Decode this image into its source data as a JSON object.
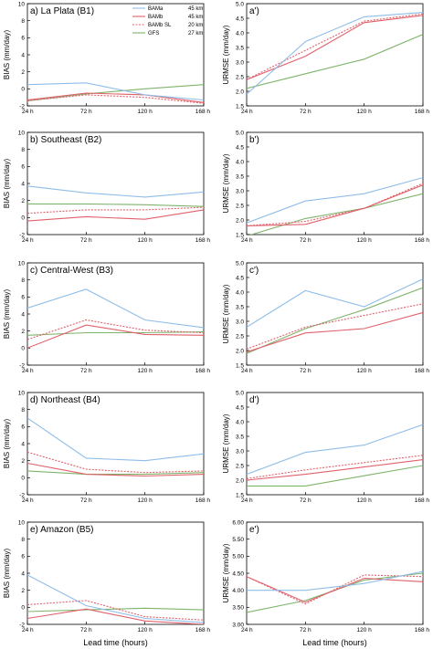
{
  "x_ticks": [
    "24 h",
    "72 h",
    "120 h",
    "168 h"
  ],
  "x_label": "Lead time (hours)",
  "series_style": {
    "BAMa": {
      "color": "#8fbde8",
      "dash": ""
    },
    "BAMb": {
      "color": "#e0606a",
      "dash": ""
    },
    "BAMb SL": {
      "color": "#e0606a",
      "dash": "2,1.5"
    },
    "GFS": {
      "color": "#7fb46c",
      "dash": ""
    }
  },
  "legend": {
    "entries": [
      {
        "name": "BAMa",
        "res": "45 km"
      },
      {
        "name": "BAMb",
        "res": "45 km"
      },
      {
        "name": "BAMb SL",
        "res": "20 km"
      },
      {
        "name": "GFS",
        "res": "27 km"
      }
    ]
  },
  "chart_data": [
    {
      "type": "line",
      "panel": "a",
      "title": "a) La Plata (B1)",
      "ylabel": "BIAS (mm/day)",
      "x": [
        24,
        72,
        120,
        168
      ],
      "ylim": [
        -2,
        10
      ],
      "yticks": [
        "-2",
        "0",
        "2",
        "4",
        "6",
        "8",
        "10"
      ],
      "series": [
        {
          "name": "BAMa",
          "values": [
            0.5,
            0.7,
            -0.7,
            -1.3
          ]
        },
        {
          "name": "BAMb",
          "values": [
            -1.3,
            -0.5,
            -0.7,
            -1.6
          ]
        },
        {
          "name": "BAMb SL",
          "values": [
            -1.4,
            -0.7,
            -1.0,
            -1.7
          ]
        },
        {
          "name": "GFS",
          "values": [
            -1.4,
            -0.6,
            0.0,
            0.5
          ]
        }
      ]
    },
    {
      "type": "line",
      "panel": "a2",
      "title": "a')",
      "ylabel": "URMSE (mm/day)",
      "x": [
        24,
        72,
        120,
        168
      ],
      "ylim": [
        1.5,
        5.0
      ],
      "yticks": [
        "1.5",
        "2.0",
        "2.5",
        "3.0",
        "3.5",
        "4.0",
        "4.5",
        "5.0"
      ],
      "series": [
        {
          "name": "BAMa",
          "values": [
            1.9,
            3.7,
            4.55,
            4.7
          ]
        },
        {
          "name": "BAMb",
          "values": [
            2.4,
            3.2,
            4.35,
            4.6
          ]
        },
        {
          "name": "BAMb SL",
          "values": [
            2.4,
            3.4,
            4.4,
            4.65
          ]
        },
        {
          "name": "GFS",
          "values": [
            2.1,
            2.6,
            3.1,
            3.95
          ]
        }
      ]
    },
    {
      "type": "line",
      "panel": "b",
      "title": "b) Southeast (B2)",
      "ylabel": "BIAS (mm/day)",
      "x": [
        24,
        72,
        120,
        168
      ],
      "ylim": [
        -2,
        10
      ],
      "yticks": [
        "-2",
        "0",
        "2",
        "4",
        "6",
        "8",
        "10"
      ],
      "series": [
        {
          "name": "BAMa",
          "values": [
            3.7,
            2.9,
            2.4,
            3.0
          ]
        },
        {
          "name": "BAMb",
          "values": [
            -0.4,
            0.1,
            -0.2,
            0.9
          ]
        },
        {
          "name": "BAMb SL",
          "values": [
            0.5,
            0.9,
            0.9,
            1.2
          ]
        },
        {
          "name": "GFS",
          "values": [
            1.6,
            1.6,
            1.5,
            1.3
          ]
        }
      ]
    },
    {
      "type": "line",
      "panel": "b2",
      "title": "b')",
      "ylabel": "URMSE (mm/day)",
      "x": [
        24,
        72,
        120,
        168
      ],
      "ylim": [
        1.5,
        5.0
      ],
      "yticks": [
        "1.5",
        "2.0",
        "2.5",
        "3.0",
        "3.5",
        "4.0",
        "4.5",
        "5.0"
      ],
      "series": [
        {
          "name": "BAMa",
          "values": [
            1.9,
            2.65,
            2.9,
            3.45
          ]
        },
        {
          "name": "BAMb",
          "values": [
            1.8,
            1.85,
            2.4,
            3.2
          ]
        },
        {
          "name": "BAMb SL",
          "values": [
            1.8,
            1.95,
            2.4,
            3.25
          ]
        },
        {
          "name": "GFS",
          "values": [
            1.45,
            2.05,
            2.4,
            2.9
          ]
        }
      ]
    },
    {
      "type": "line",
      "panel": "c",
      "title": "c) Central-West (B3)",
      "ylabel": "BIAS (mm/day)",
      "x": [
        24,
        72,
        120,
        168
      ],
      "ylim": [
        -2,
        10
      ],
      "yticks": [
        "-2",
        "0",
        "2",
        "4",
        "6",
        "8",
        "10"
      ],
      "series": [
        {
          "name": "BAMa",
          "values": [
            4.7,
            6.9,
            3.3,
            2.4
          ]
        },
        {
          "name": "BAMb",
          "values": [
            0.0,
            2.7,
            1.6,
            1.5
          ]
        },
        {
          "name": "BAMb SL",
          "values": [
            1.0,
            3.3,
            2.1,
            1.8
          ]
        },
        {
          "name": "GFS",
          "values": [
            1.5,
            1.8,
            1.8,
            1.9
          ]
        }
      ]
    },
    {
      "type": "line",
      "panel": "c2",
      "title": "c')",
      "ylabel": "URMSE (mm/day)",
      "x": [
        24,
        72,
        120,
        168
      ],
      "ylim": [
        1.5,
        5.0
      ],
      "yticks": [
        "1.5",
        "2.0",
        "2.5",
        "3.0",
        "3.5",
        "4.0",
        "4.5",
        "5.0"
      ],
      "series": [
        {
          "name": "BAMa",
          "values": [
            2.8,
            4.05,
            3.5,
            4.45
          ]
        },
        {
          "name": "BAMb",
          "values": [
            1.95,
            2.6,
            2.75,
            3.3
          ]
        },
        {
          "name": "BAMb SL",
          "values": [
            2.05,
            2.8,
            3.2,
            3.6
          ]
        },
        {
          "name": "GFS",
          "values": [
            1.9,
            2.75,
            3.4,
            4.15
          ]
        }
      ]
    },
    {
      "type": "line",
      "panel": "d",
      "title": "d) Northeast (B4)",
      "ylabel": "BIAS (mm/day)",
      "x": [
        24,
        72,
        120,
        168
      ],
      "ylim": [
        -2,
        10
      ],
      "yticks": [
        "-2",
        "0",
        "2",
        "4",
        "6",
        "8",
        "10"
      ],
      "series": [
        {
          "name": "BAMa",
          "values": [
            7.0,
            2.3,
            2.0,
            2.8
          ]
        },
        {
          "name": "BAMb",
          "values": [
            1.7,
            0.4,
            0.2,
            0.4
          ]
        },
        {
          "name": "BAMb SL",
          "values": [
            3.0,
            1.0,
            0.6,
            0.8
          ]
        },
        {
          "name": "GFS",
          "values": [
            0.8,
            0.4,
            0.4,
            0.6
          ]
        }
      ]
    },
    {
      "type": "line",
      "panel": "d2",
      "title": "d')",
      "ylabel": "URMSE (mm/day)",
      "x": [
        24,
        72,
        120,
        168
      ],
      "ylim": [
        1.5,
        5.0
      ],
      "yticks": [
        "1.5",
        "2.0",
        "2.5",
        "3.0",
        "3.5",
        "4.0",
        "4.5",
        "5.0"
      ],
      "series": [
        {
          "name": "BAMa",
          "values": [
            2.2,
            2.95,
            3.2,
            3.9
          ]
        },
        {
          "name": "BAMb",
          "values": [
            2.0,
            2.2,
            2.45,
            2.7
          ]
        },
        {
          "name": "BAMb SL",
          "values": [
            2.05,
            2.35,
            2.6,
            2.85
          ]
        },
        {
          "name": "GFS",
          "values": [
            1.8,
            1.8,
            2.15,
            2.5
          ]
        }
      ]
    },
    {
      "type": "line",
      "panel": "e",
      "title": "e) Amazon (B5)",
      "ylabel": "BIAS (mm/day)",
      "x": [
        24,
        72,
        120,
        168
      ],
      "ylim": [
        -2,
        10
      ],
      "yticks": [
        "-2",
        "0",
        "2",
        "4",
        "6",
        "8",
        "10"
      ],
      "series": [
        {
          "name": "BAMa",
          "values": [
            3.8,
            0.2,
            -1.3,
            -1.8
          ]
        },
        {
          "name": "BAMb",
          "values": [
            -1.3,
            -0.2,
            -1.6,
            -2.0
          ]
        },
        {
          "name": "BAMb SL",
          "values": [
            0.3,
            0.8,
            -1.1,
            -1.5
          ]
        },
        {
          "name": "GFS",
          "values": [
            -0.5,
            -0.3,
            -0.1,
            -0.3
          ]
        }
      ]
    },
    {
      "type": "line",
      "panel": "e2",
      "title": "e')",
      "ylabel": "URMSE (mm/day)",
      "x": [
        24,
        72,
        120,
        168
      ],
      "ylim": [
        3.0,
        6.0
      ],
      "yticks": [
        "3.00",
        "3.50",
        "4.00",
        "4.50",
        "5.00",
        "5.50",
        "6.00"
      ],
      "series": [
        {
          "name": "BAMa",
          "values": [
            4.0,
            4.0,
            4.2,
            4.55
          ]
        },
        {
          "name": "BAMb",
          "values": [
            4.4,
            3.65,
            4.35,
            4.25
          ]
        },
        {
          "name": "BAMb SL",
          "values": [
            4.4,
            3.6,
            4.45,
            4.4
          ]
        },
        {
          "name": "GFS",
          "values": [
            3.35,
            3.7,
            4.3,
            4.5
          ]
        }
      ]
    }
  ]
}
